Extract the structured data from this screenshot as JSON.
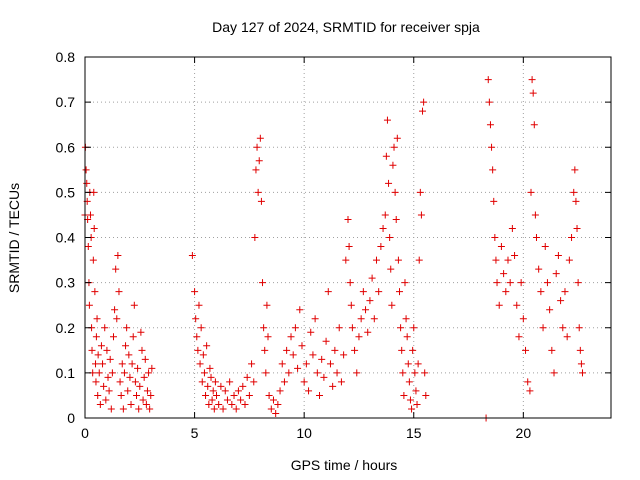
{
  "chart_data": {
    "type": "scatter",
    "title": "Day 127 of 2024, SRMTID for receiver spja",
    "xlabel": "GPS time / hours",
    "ylabel": "SRMTID / TECUs",
    "xlim": [
      0,
      24
    ],
    "ylim": [
      0,
      0.8
    ],
    "grid": true,
    "marker": "+",
    "colors": {
      "points": "#e00000",
      "grid": "#a0a0a0",
      "frame": "#000000"
    },
    "x_ticks": [
      0,
      5,
      10,
      15,
      20
    ],
    "x_tick_labels": [
      "0",
      "5",
      "10",
      "15",
      "20"
    ],
    "y_ticks": [
      0,
      0.1,
      0.2,
      0.3,
      0.4,
      0.5,
      0.6,
      0.7,
      0.8
    ],
    "y_tick_labels": [
      "0",
      "0.1",
      "0.2",
      "0.3",
      "0.4",
      "0.5",
      "0.6",
      "0.7",
      "0.8"
    ],
    "series": [
      {
        "name": "SRMTID",
        "points": [
          [
            0.0,
            0.45
          ],
          [
            0.02,
            0.6
          ],
          [
            0.05,
            0.55
          ],
          [
            0.08,
            0.52
          ],
          [
            0.1,
            0.48
          ],
          [
            0.12,
            0.44
          ],
          [
            0.15,
            0.38
          ],
          [
            0.18,
            0.3
          ],
          [
            0.2,
            0.25
          ],
          [
            0.22,
            0.5
          ],
          [
            0.25,
            0.45
          ],
          [
            0.28,
            0.4
          ],
          [
            0.3,
            0.2
          ],
          [
            0.32,
            0.15
          ],
          [
            0.35,
            0.1
          ],
          [
            0.38,
            0.35
          ],
          [
            0.4,
            0.5
          ],
          [
            0.42,
            0.42
          ],
          [
            0.45,
            0.28
          ],
          [
            0.48,
            0.12
          ],
          [
            0.5,
            0.08
          ],
          [
            0.52,
            0.18
          ],
          [
            0.55,
            0.22
          ],
          [
            0.58,
            0.05
          ],
          [
            0.6,
            0.14
          ],
          [
            0.65,
            0.1
          ],
          [
            0.7,
            0.03
          ],
          [
            0.75,
            0.16
          ],
          [
            0.8,
            0.12
          ],
          [
            0.85,
            0.07
          ],
          [
            0.9,
            0.2
          ],
          [
            0.95,
            0.04
          ],
          [
            1.0,
            0.15
          ],
          [
            1.05,
            0.09
          ],
          [
            1.1,
            0.06
          ],
          [
            1.15,
            0.13
          ],
          [
            1.2,
            0.02
          ],
          [
            1.25,
            0.1
          ],
          [
            1.3,
            0.18
          ],
          [
            1.35,
            0.24
          ],
          [
            1.4,
            0.33
          ],
          [
            1.45,
            0.22
          ],
          [
            1.5,
            0.36
          ],
          [
            1.55,
            0.28
          ],
          [
            1.6,
            0.08
          ],
          [
            1.65,
            0.05
          ],
          [
            1.7,
            0.12
          ],
          [
            1.75,
            0.02
          ],
          [
            1.8,
            0.1
          ],
          [
            1.85,
            0.16
          ],
          [
            1.9,
            0.2
          ],
          [
            1.95,
            0.06
          ],
          [
            2.0,
            0.14
          ],
          [
            2.05,
            0.09
          ],
          [
            2.1,
            0.03
          ],
          [
            2.15,
            0.12
          ],
          [
            2.2,
            0.18
          ],
          [
            2.25,
            0.25
          ],
          [
            2.3,
            0.08
          ],
          [
            2.35,
            0.05
          ],
          [
            2.4,
            0.11
          ],
          [
            2.45,
            0.02
          ],
          [
            2.5,
            0.07
          ],
          [
            2.55,
            0.19
          ],
          [
            2.6,
            0.15
          ],
          [
            2.65,
            0.04
          ],
          [
            2.7,
            0.09
          ],
          [
            2.75,
            0.13
          ],
          [
            2.8,
            0.03
          ],
          [
            2.85,
            0.06
          ],
          [
            2.9,
            0.1
          ],
          [
            2.95,
            0.02
          ],
          [
            3.0,
            0.05
          ],
          [
            3.05,
            0.11
          ],
          [
            4.9,
            0.36
          ],
          [
            5.0,
            0.28
          ],
          [
            5.05,
            0.22
          ],
          [
            5.1,
            0.18
          ],
          [
            5.15,
            0.15
          ],
          [
            5.2,
            0.25
          ],
          [
            5.25,
            0.12
          ],
          [
            5.3,
            0.2
          ],
          [
            5.35,
            0.08
          ],
          [
            5.4,
            0.14
          ],
          [
            5.45,
            0.1
          ],
          [
            5.5,
            0.05
          ],
          [
            5.55,
            0.16
          ],
          [
            5.6,
            0.07
          ],
          [
            5.65,
            0.03
          ],
          [
            5.7,
            0.11
          ],
          [
            5.75,
            0.09
          ],
          [
            5.8,
            0.04
          ],
          [
            5.85,
            0.06
          ],
          [
            5.9,
            0.02
          ],
          [
            5.95,
            0.08
          ],
          [
            6.0,
            0.05
          ],
          [
            6.1,
            0.03
          ],
          [
            6.2,
            0.07
          ],
          [
            6.3,
            0.02
          ],
          [
            6.4,
            0.06
          ],
          [
            6.5,
            0.04
          ],
          [
            6.6,
            0.08
          ],
          [
            6.7,
            0.03
          ],
          [
            6.8,
            0.05
          ],
          [
            6.9,
            0.02
          ],
          [
            7.0,
            0.06
          ],
          [
            7.1,
            0.04
          ],
          [
            7.2,
            0.07
          ],
          [
            7.3,
            0.03
          ],
          [
            7.4,
            0.09
          ],
          [
            7.5,
            0.05
          ],
          [
            7.6,
            0.12
          ],
          [
            7.7,
            0.08
          ],
          [
            7.75,
            0.4
          ],
          [
            7.8,
            0.55
          ],
          [
            7.85,
            0.6
          ],
          [
            7.9,
            0.5
          ],
          [
            7.95,
            0.57
          ],
          [
            8.0,
            0.62
          ],
          [
            8.05,
            0.48
          ],
          [
            8.1,
            0.3
          ],
          [
            8.15,
            0.2
          ],
          [
            8.2,
            0.15
          ],
          [
            8.25,
            0.1
          ],
          [
            8.3,
            0.25
          ],
          [
            8.35,
            0.18
          ],
          [
            8.4,
            0.05
          ],
          [
            8.5,
            0.02
          ],
          [
            8.6,
            0.04
          ],
          [
            8.7,
            0.01
          ],
          [
            8.8,
            0.03
          ],
          [
            8.9,
            0.06
          ],
          [
            9.0,
            0.12
          ],
          [
            9.1,
            0.08
          ],
          [
            9.2,
            0.15
          ],
          [
            9.3,
            0.1
          ],
          [
            9.4,
            0.18
          ],
          [
            9.5,
            0.14
          ],
          [
            9.6,
            0.2
          ],
          [
            9.7,
            0.11
          ],
          [
            9.8,
            0.24
          ],
          [
            9.9,
            0.16
          ],
          [
            10.0,
            0.08
          ],
          [
            10.1,
            0.12
          ],
          [
            10.2,
            0.06
          ],
          [
            10.3,
            0.19
          ],
          [
            10.4,
            0.14
          ],
          [
            10.5,
            0.22
          ],
          [
            10.6,
            0.1
          ],
          [
            10.7,
            0.05
          ],
          [
            10.8,
            0.13
          ],
          [
            10.9,
            0.09
          ],
          [
            11.0,
            0.17
          ],
          [
            11.1,
            0.28
          ],
          [
            11.2,
            0.12
          ],
          [
            11.3,
            0.07
          ],
          [
            11.4,
            0.15
          ],
          [
            11.5,
            0.1
          ],
          [
            11.6,
            0.2
          ],
          [
            11.7,
            0.08
          ],
          [
            11.8,
            0.14
          ],
          [
            11.9,
            0.35
          ],
          [
            12.0,
            0.44
          ],
          [
            12.05,
            0.38
          ],
          [
            12.1,
            0.3
          ],
          [
            12.15,
            0.25
          ],
          [
            12.2,
            0.2
          ],
          [
            12.3,
            0.15
          ],
          [
            12.4,
            0.1
          ],
          [
            12.5,
            0.18
          ],
          [
            12.6,
            0.22
          ],
          [
            12.7,
            0.28
          ],
          [
            12.8,
            0.24
          ],
          [
            12.9,
            0.19
          ],
          [
            13.0,
            0.26
          ],
          [
            13.1,
            0.31
          ],
          [
            13.2,
            0.22
          ],
          [
            13.3,
            0.35
          ],
          [
            13.4,
            0.28
          ],
          [
            13.5,
            0.38
          ],
          [
            13.6,
            0.42
          ],
          [
            13.7,
            0.45
          ],
          [
            13.75,
            0.58
          ],
          [
            13.8,
            0.66
          ],
          [
            13.85,
            0.52
          ],
          [
            13.9,
            0.4
          ],
          [
            13.95,
            0.33
          ],
          [
            14.0,
            0.25
          ],
          [
            14.05,
            0.56
          ],
          [
            14.1,
            0.6
          ],
          [
            14.15,
            0.5
          ],
          [
            14.2,
            0.44
          ],
          [
            14.25,
            0.62
          ],
          [
            14.3,
            0.35
          ],
          [
            14.35,
            0.28
          ],
          [
            14.4,
            0.2
          ],
          [
            14.45,
            0.15
          ],
          [
            14.5,
            0.1
          ],
          [
            14.55,
            0.05
          ],
          [
            14.6,
            0.3
          ],
          [
            14.65,
            0.22
          ],
          [
            14.7,
            0.18
          ],
          [
            14.75,
            0.12
          ],
          [
            14.8,
            0.08
          ],
          [
            14.85,
            0.04
          ],
          [
            14.9,
            0.02
          ],
          [
            14.95,
            0.15
          ],
          [
            15.0,
            0.2
          ],
          [
            15.05,
            0.1
          ],
          [
            15.1,
            0.06
          ],
          [
            15.15,
            0.03
          ],
          [
            15.2,
            0.12
          ],
          [
            15.25,
            0.35
          ],
          [
            15.3,
            0.5
          ],
          [
            15.35,
            0.45
          ],
          [
            15.4,
            0.68
          ],
          [
            15.45,
            0.7
          ],
          [
            15.5,
            0.1
          ],
          [
            15.55,
            0.05
          ],
          [
            18.3,
            0.0
          ],
          [
            18.4,
            0.75
          ],
          [
            18.45,
            0.7
          ],
          [
            18.5,
            0.65
          ],
          [
            18.55,
            0.6
          ],
          [
            18.6,
            0.55
          ],
          [
            18.65,
            0.48
          ],
          [
            18.7,
            0.4
          ],
          [
            18.75,
            0.35
          ],
          [
            18.8,
            0.3
          ],
          [
            18.9,
            0.25
          ],
          [
            19.0,
            0.38
          ],
          [
            19.1,
            0.32
          ],
          [
            19.2,
            0.28
          ],
          [
            19.3,
            0.35
          ],
          [
            19.4,
            0.3
          ],
          [
            19.5,
            0.42
          ],
          [
            19.6,
            0.36
          ],
          [
            19.7,
            0.25
          ],
          [
            19.8,
            0.18
          ],
          [
            19.9,
            0.3
          ],
          [
            20.0,
            0.22
          ],
          [
            20.1,
            0.15
          ],
          [
            20.2,
            0.08
          ],
          [
            20.3,
            0.06
          ],
          [
            20.35,
            0.5
          ],
          [
            20.4,
            0.75
          ],
          [
            20.45,
            0.72
          ],
          [
            20.5,
            0.65
          ],
          [
            20.55,
            0.45
          ],
          [
            20.6,
            0.4
          ],
          [
            20.7,
            0.33
          ],
          [
            20.8,
            0.28
          ],
          [
            20.9,
            0.2
          ],
          [
            21.0,
            0.38
          ],
          [
            21.1,
            0.3
          ],
          [
            21.2,
            0.24
          ],
          [
            21.3,
            0.15
          ],
          [
            21.4,
            0.1
          ],
          [
            21.5,
            0.32
          ],
          [
            21.6,
            0.36
          ],
          [
            21.7,
            0.26
          ],
          [
            21.8,
            0.2
          ],
          [
            21.9,
            0.28
          ],
          [
            22.0,
            0.18
          ],
          [
            22.1,
            0.35
          ],
          [
            22.2,
            0.4
          ],
          [
            22.3,
            0.5
          ],
          [
            22.35,
            0.55
          ],
          [
            22.4,
            0.48
          ],
          [
            22.45,
            0.42
          ],
          [
            22.5,
            0.3
          ],
          [
            22.55,
            0.2
          ],
          [
            22.6,
            0.15
          ],
          [
            22.65,
            0.12
          ],
          [
            22.7,
            0.1
          ]
        ]
      }
    ]
  }
}
